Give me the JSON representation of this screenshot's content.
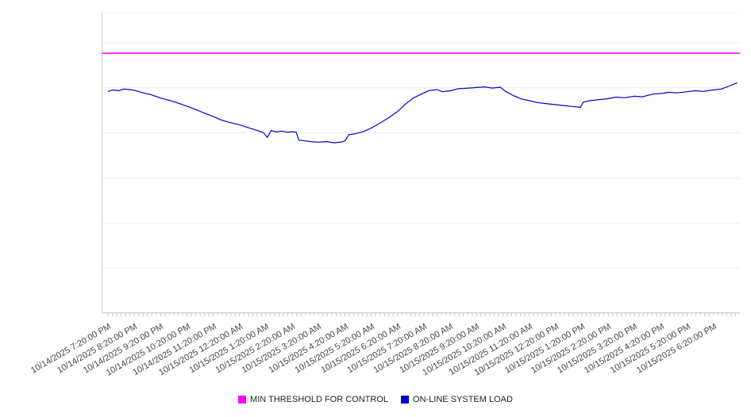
{
  "chart_data": {
    "type": "line",
    "title": "",
    "xlabel": "",
    "ylabel": "",
    "ylim": [
      0,
      100
    ],
    "grid_step": 15,
    "grid_on": true,
    "grid_color": "#ededed",
    "axis_color": "#cccccc",
    "x_hours_span": 24,
    "minor_ticks_per_hour": 6,
    "x_tick_labels": [
      "10/14/2025 7:20:00 PM",
      "10/14/2025 8:20:00 PM",
      "10/14/2025 9:20:00 PM",
      "10/14/2025 10:20:00 PM",
      "10/14/2025 11:20:00 PM",
      "10/15/2025 12:20:00 AM",
      "10/15/2025 1:20:00 AM",
      "10/15/2025 2:20:00 AM",
      "10/15/2025 3:20:00 AM",
      "10/15/2025 4:20:00 AM",
      "10/15/2025 5:20:00 AM",
      "10/15/2025 6:20:00 AM",
      "10/15/2025 7:20:00 AM",
      "10/15/2025 8:20:00 AM",
      "10/15/2025 9:20:00 AM",
      "10/15/2025 10:20:00 AM",
      "10/15/2025 11:20:00 AM",
      "10/15/2025 12:20:00 PM",
      "10/15/2025 1:20:00 PM",
      "10/15/2025 2:20:00 PM",
      "10/15/2025 3:20:00 PM",
      "10/15/2025 4:20:00 PM",
      "10/15/2025 5:20:00 PM",
      "10/15/2025 6:20:00 PM"
    ],
    "series": [
      {
        "name": "MIN THRESHOLD FOR CONTROL",
        "color": "#ff00ff",
        "style": "threshold",
        "value": 86.5
      },
      {
        "name": "ON-LINE SYSTEM LOAD",
        "color": "#0000cd",
        "style": "line",
        "points": [
          [
            0,
            73.8
          ],
          [
            0.2,
            74.3
          ],
          [
            0.4,
            74.0
          ],
          [
            0.6,
            74.6
          ],
          [
            0.8,
            74.4
          ],
          [
            1.0,
            74.2
          ],
          [
            1.3,
            73.4
          ],
          [
            1.6,
            72.8
          ],
          [
            2.0,
            71.6
          ],
          [
            2.3,
            70.9
          ],
          [
            2.6,
            70.1
          ],
          [
            3.0,
            68.9
          ],
          [
            3.3,
            67.9
          ],
          [
            3.6,
            66.8
          ],
          [
            4.0,
            65.4
          ],
          [
            4.3,
            64.3
          ],
          [
            4.6,
            63.5
          ],
          [
            5.0,
            62.7
          ],
          [
            5.3,
            61.8
          ],
          [
            5.6,
            61.0
          ],
          [
            5.9,
            60.1
          ],
          [
            6.05,
            58.5
          ],
          [
            6.2,
            60.8
          ],
          [
            6.4,
            60.3
          ],
          [
            6.6,
            60.6
          ],
          [
            6.8,
            60.2
          ],
          [
            7.0,
            60.4
          ],
          [
            7.15,
            60.2
          ],
          [
            7.25,
            57.6
          ],
          [
            7.5,
            57.3
          ],
          [
            7.8,
            57.0
          ],
          [
            8.0,
            56.9
          ],
          [
            8.3,
            57.1
          ],
          [
            8.6,
            56.7
          ],
          [
            8.9,
            57.0
          ],
          [
            9.0,
            57.4
          ],
          [
            9.15,
            59.4
          ],
          [
            9.4,
            59.7
          ],
          [
            9.7,
            60.4
          ],
          [
            10.0,
            61.6
          ],
          [
            10.3,
            63.1
          ],
          [
            10.6,
            64.7
          ],
          [
            11.0,
            67.1
          ],
          [
            11.3,
            69.6
          ],
          [
            11.6,
            71.6
          ],
          [
            12.0,
            73.3
          ],
          [
            12.2,
            74.1
          ],
          [
            12.5,
            74.4
          ],
          [
            12.7,
            73.7
          ],
          [
            13.0,
            74.0
          ],
          [
            13.3,
            74.7
          ],
          [
            13.7,
            74.9
          ],
          [
            14.0,
            75.1
          ],
          [
            14.3,
            75.3
          ],
          [
            14.6,
            74.9
          ],
          [
            14.9,
            75.2
          ],
          [
            15.1,
            73.8
          ],
          [
            15.4,
            72.4
          ],
          [
            15.7,
            71.3
          ],
          [
            16.0,
            70.7
          ],
          [
            16.3,
            70.1
          ],
          [
            16.6,
            69.8
          ],
          [
            17.0,
            69.4
          ],
          [
            17.3,
            69.1
          ],
          [
            17.6,
            68.8
          ],
          [
            17.95,
            68.5
          ],
          [
            18.05,
            70.2
          ],
          [
            18.3,
            70.7
          ],
          [
            18.6,
            71.0
          ],
          [
            19.0,
            71.4
          ],
          [
            19.3,
            71.9
          ],
          [
            19.6,
            71.7
          ],
          [
            20.0,
            72.2
          ],
          [
            20.3,
            72.0
          ],
          [
            20.7,
            72.9
          ],
          [
            21.0,
            73.1
          ],
          [
            21.3,
            73.5
          ],
          [
            21.6,
            73.3
          ],
          [
            22.0,
            73.7
          ],
          [
            22.3,
            74.0
          ],
          [
            22.6,
            73.8
          ],
          [
            23.0,
            74.3
          ],
          [
            23.3,
            74.6
          ],
          [
            23.6,
            75.6
          ],
          [
            23.9,
            76.7
          ]
        ]
      }
    ],
    "legend_position": "bottom-center"
  },
  "legend": {
    "items": [
      {
        "label": "MIN THRESHOLD FOR CONTROL",
        "color": "#ff00ff"
      },
      {
        "label": "ON-LINE SYSTEM LOAD",
        "color": "#0000cd"
      }
    ]
  },
  "colors": {
    "background": "#ffffff",
    "threshold": "#ff00ff",
    "load": "#0000cd",
    "grid": "#ededed",
    "axis": "#cccccc",
    "label_text": "#454545"
  }
}
